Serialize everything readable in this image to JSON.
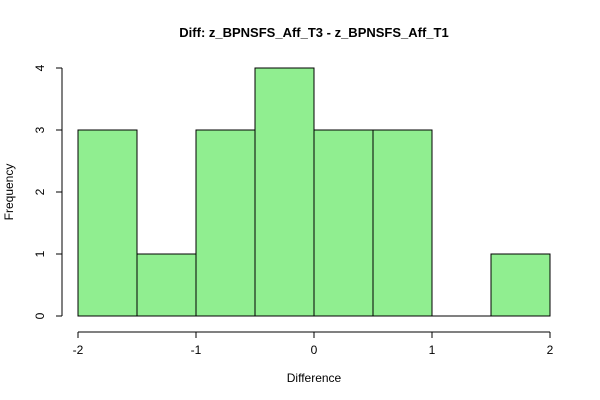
{
  "chart_data": {
    "type": "bar",
    "title": "Diff: z_BPNSFS_Aff_T3 - z_BPNSFS_Aff_T1",
    "xlabel": "Difference",
    "ylabel": "Frequency",
    "bins": [
      {
        "start": -2.0,
        "end": -1.5,
        "count": 3
      },
      {
        "start": -1.5,
        "end": -1.0,
        "count": 1
      },
      {
        "start": -1.0,
        "end": -0.5,
        "count": 3
      },
      {
        "start": -0.5,
        "end": 0.0,
        "count": 4
      },
      {
        "start": 0.0,
        "end": 0.5,
        "count": 3
      },
      {
        "start": 0.5,
        "end": 1.0,
        "count": 3
      },
      {
        "start": 1.0,
        "end": 1.5,
        "count": 0
      },
      {
        "start": 1.5,
        "end": 2.0,
        "count": 1
      }
    ],
    "xlim": [
      -2,
      2
    ],
    "ylim": [
      0,
      4
    ],
    "x_ticks": [
      "-2",
      "-1",
      "0",
      "1",
      "2"
    ],
    "y_ticks": [
      "0",
      "1",
      "2",
      "3",
      "4"
    ],
    "bar_fill": "#90ee90",
    "bar_stroke": "#000000",
    "grid": false,
    "legend": "none"
  }
}
